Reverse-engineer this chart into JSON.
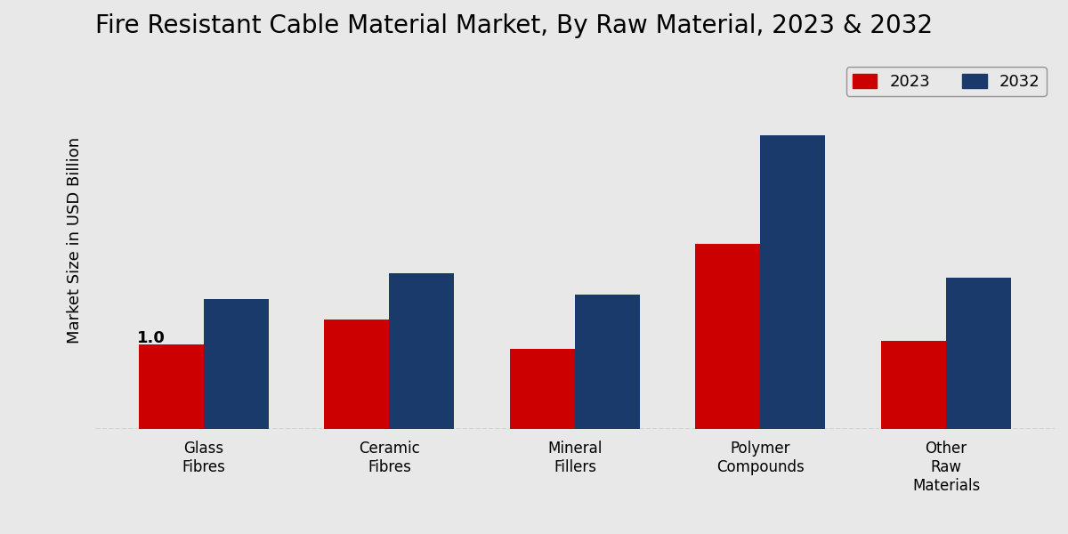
{
  "title": "Fire Resistant Cable Material Market, By Raw Material, 2023 & 2032",
  "ylabel": "Market Size in USD Billion",
  "categories": [
    "Glass\nFibres",
    "Ceramic\nFibres",
    "Mineral\nFillers",
    "Polymer\nCompounds",
    "Other\nRaw\nMaterials"
  ],
  "values_2023": [
    1.0,
    1.3,
    0.95,
    2.2,
    1.05
  ],
  "values_2032": [
    1.55,
    1.85,
    1.6,
    3.5,
    1.8
  ],
  "color_2023": "#cc0000",
  "color_2032": "#1a3a6b",
  "annotation_text": "1.0",
  "annotation_bar": 0,
  "bar_width": 0.35,
  "ylim": [
    0,
    4.5
  ],
  "background_color": "#e8e8e8",
  "legend_labels": [
    "2023",
    "2032"
  ],
  "title_fontsize": 20,
  "label_fontsize": 13,
  "tick_fontsize": 12
}
